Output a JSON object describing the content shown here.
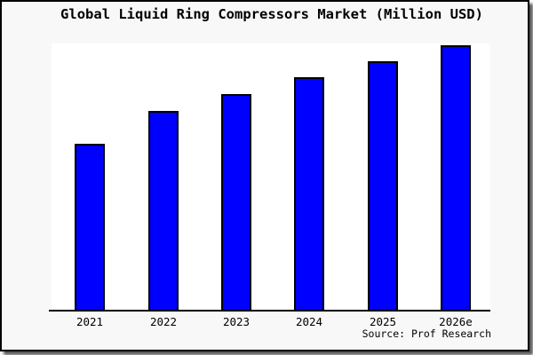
{
  "colors": {
    "bar_fill": "#0000ff",
    "bar_border": "#000000",
    "figure_background": "#f8f8f8",
    "plot_background": "#ffffff",
    "axis_line": "#000000",
    "frame_border": "#000000",
    "shadow": "#3c3c3c",
    "text": "#000000"
  },
  "chart_data": {
    "type": "bar",
    "title": "Global Liquid Ring Compressors Market (Million USD)",
    "categories": [
      "2021",
      "2022",
      "2023",
      "2024",
      "2025",
      "2026e"
    ],
    "values": [
      62.8,
      75.2,
      81.6,
      87.8,
      93.7,
      100
    ],
    "value_scale": "relative, percent of tallest (2026e) bar; y-axis has no tick labels",
    "xlabel": "",
    "ylabel": "",
    "ylim": [
      0,
      100.5
    ],
    "grid": false,
    "legend": false,
    "y_axis_shown": false,
    "source_note": "Source: Prof Research"
  }
}
